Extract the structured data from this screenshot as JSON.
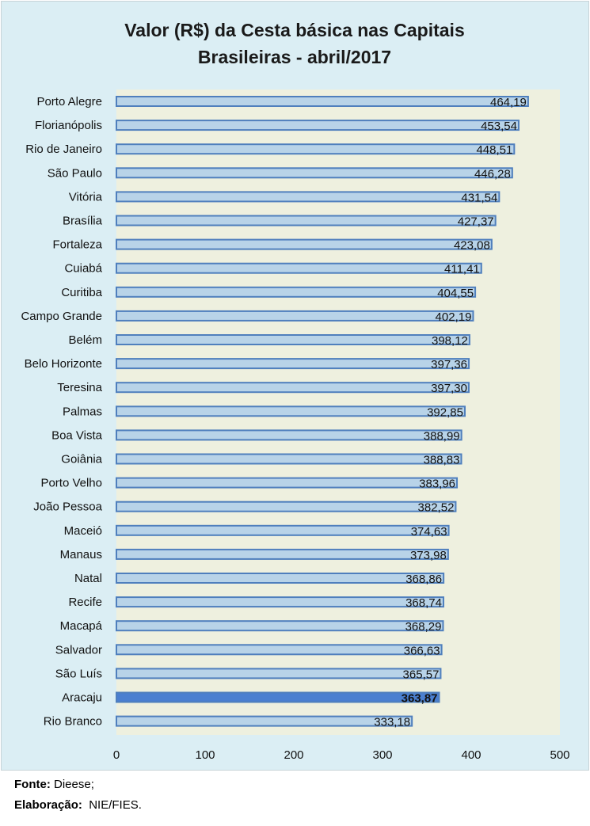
{
  "chart_data": {
    "type": "bar",
    "orientation": "horizontal",
    "title_lines": [
      "Valor (R$) da Cesta básica nas Capitais",
      "Brasileiras -  abril/2017"
    ],
    "categories": [
      "Porto Alegre",
      "Florianópolis",
      "Rio de Janeiro",
      "São Paulo",
      "Vitória",
      "Brasília",
      "Fortaleza",
      "Cuiabá",
      "Curitiba",
      "Campo Grande",
      "Belém",
      "Belo Horizonte",
      "Teresina",
      "Palmas",
      "Boa Vista",
      "Goiânia",
      "Porto Velho",
      "João Pessoa",
      "Maceió",
      "Manaus",
      "Natal",
      "Recife",
      "Macapá",
      "Salvador",
      "São Luís",
      "Aracaju",
      "Rio Branco"
    ],
    "values": [
      464.19,
      453.54,
      448.51,
      446.28,
      431.54,
      427.37,
      423.08,
      411.41,
      404.55,
      402.19,
      398.12,
      397.36,
      397.3,
      392.85,
      388.99,
      388.83,
      383.96,
      382.52,
      374.63,
      373.98,
      368.86,
      368.74,
      368.29,
      366.63,
      365.57,
      363.87,
      333.18
    ],
    "value_labels": [
      "464,19",
      "453,54",
      "448,51",
      "446,28",
      "431,54",
      "427,37",
      "423,08",
      "411,41",
      "404,55",
      "402,19",
      "398,12",
      "397,36",
      "397,30",
      "392,85",
      "388,99",
      "388,83",
      "383,96",
      "382,52",
      "374,63",
      "373,98",
      "368,86",
      "368,74",
      "368,29",
      "366,63",
      "365,57",
      "363,87",
      "333,18"
    ],
    "highlight": "Aracaju",
    "xlim": [
      0,
      500
    ],
    "xticks": [
      0,
      100,
      200,
      300,
      400,
      500
    ],
    "xtick_labels": [
      "0",
      "100",
      "200",
      "300",
      "400",
      "500"
    ],
    "xlabel": "",
    "ylabel": "",
    "grid": false,
    "colors": {
      "bar": "#b8d3e8",
      "bar_border": "#4f7fbd",
      "highlight": "#4a7fd0",
      "background": "#dbeef4",
      "plot_bg": "#eef0df"
    }
  },
  "footer": {
    "source_label": "Fonte:",
    "source_value": " Dieese;",
    "credit_label": "Elaboração:",
    "credit_value": "  NIE/FIES."
  }
}
